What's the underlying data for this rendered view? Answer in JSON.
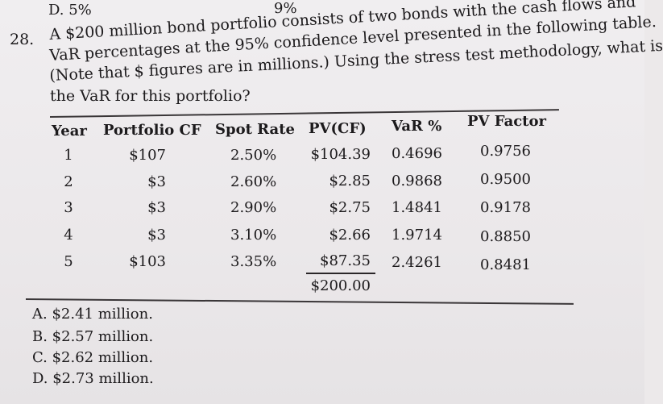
{
  "previous_option": "D. 5%",
  "stray_mark": "9%",
  "question": {
    "number": "28.",
    "lines": [
      "A $200 million bond portfolio consists of two bonds with the cash flows and",
      "VaR percentages at the 95% confidence level presented in the following table.",
      "(Note that $ figures are in millions.) Using the stress test methodology, what is",
      "the VaR for this portfolio?"
    ]
  },
  "table": {
    "headers": [
      "Year",
      "Portfolio CF",
      "Spot Rate",
      "PV(CF)",
      "VaR %",
      "PV Factor"
    ],
    "rows": [
      [
        "1",
        "$107",
        "2.50%",
        "$104.39",
        "0.4696",
        "0.9756"
      ],
      [
        "2",
        "$3",
        "2.60%",
        "$2.85",
        "0.9868",
        "0.9500"
      ],
      [
        "3",
        "$3",
        "2.90%",
        "$2.75",
        "1.4841",
        "0.9178"
      ],
      [
        "4",
        "$3",
        "3.10%",
        "$2.66",
        "1.9714",
        "0.8850"
      ],
      [
        "5",
        "$103",
        "3.35%",
        "$87.35",
        "2.4261",
        "0.8481"
      ]
    ],
    "total": "$200.00"
  },
  "answers": [
    "A. $2.41 million.",
    "B. $2.57 million.",
    "C. $2.62 million.",
    "D. $2.73 million."
  ]
}
